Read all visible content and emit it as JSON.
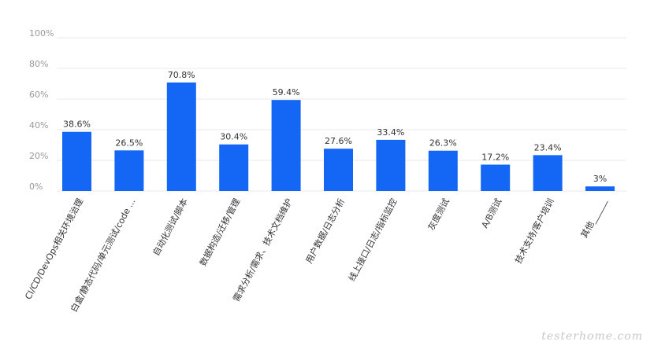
{
  "chart_data": {
    "type": "bar",
    "categories": [
      "CI/CD/DevOps相关环境治理",
      "白盒/静态代码/单元测试/code ...",
      "自动化测试/脚本",
      "数据构造/迁移/管理",
      "需求分析/需求、技术文档维护",
      "用户数据/日志分析",
      "线上接口/日志/指标监控",
      "灰度测试",
      "A/B测试",
      "技术支持/客户培训",
      "其他______"
    ],
    "values": [
      38.6,
      26.5,
      70.8,
      30.4,
      59.4,
      27.6,
      33.4,
      26.3,
      17.2,
      23.4,
      3
    ],
    "value_labels": [
      "38.6%",
      "26.5%",
      "70.8%",
      "30.4%",
      "59.4%",
      "27.6%",
      "33.4%",
      "26.3%",
      "17.2%",
      "23.4%",
      "3%"
    ],
    "y_ticks": [
      "0%",
      "20%",
      "40%",
      "60%",
      "80%",
      "100%"
    ],
    "ylim": [
      0,
      100
    ],
    "grid": true,
    "bar_color": "#1466f5"
  },
  "watermark": "testerhome.com"
}
